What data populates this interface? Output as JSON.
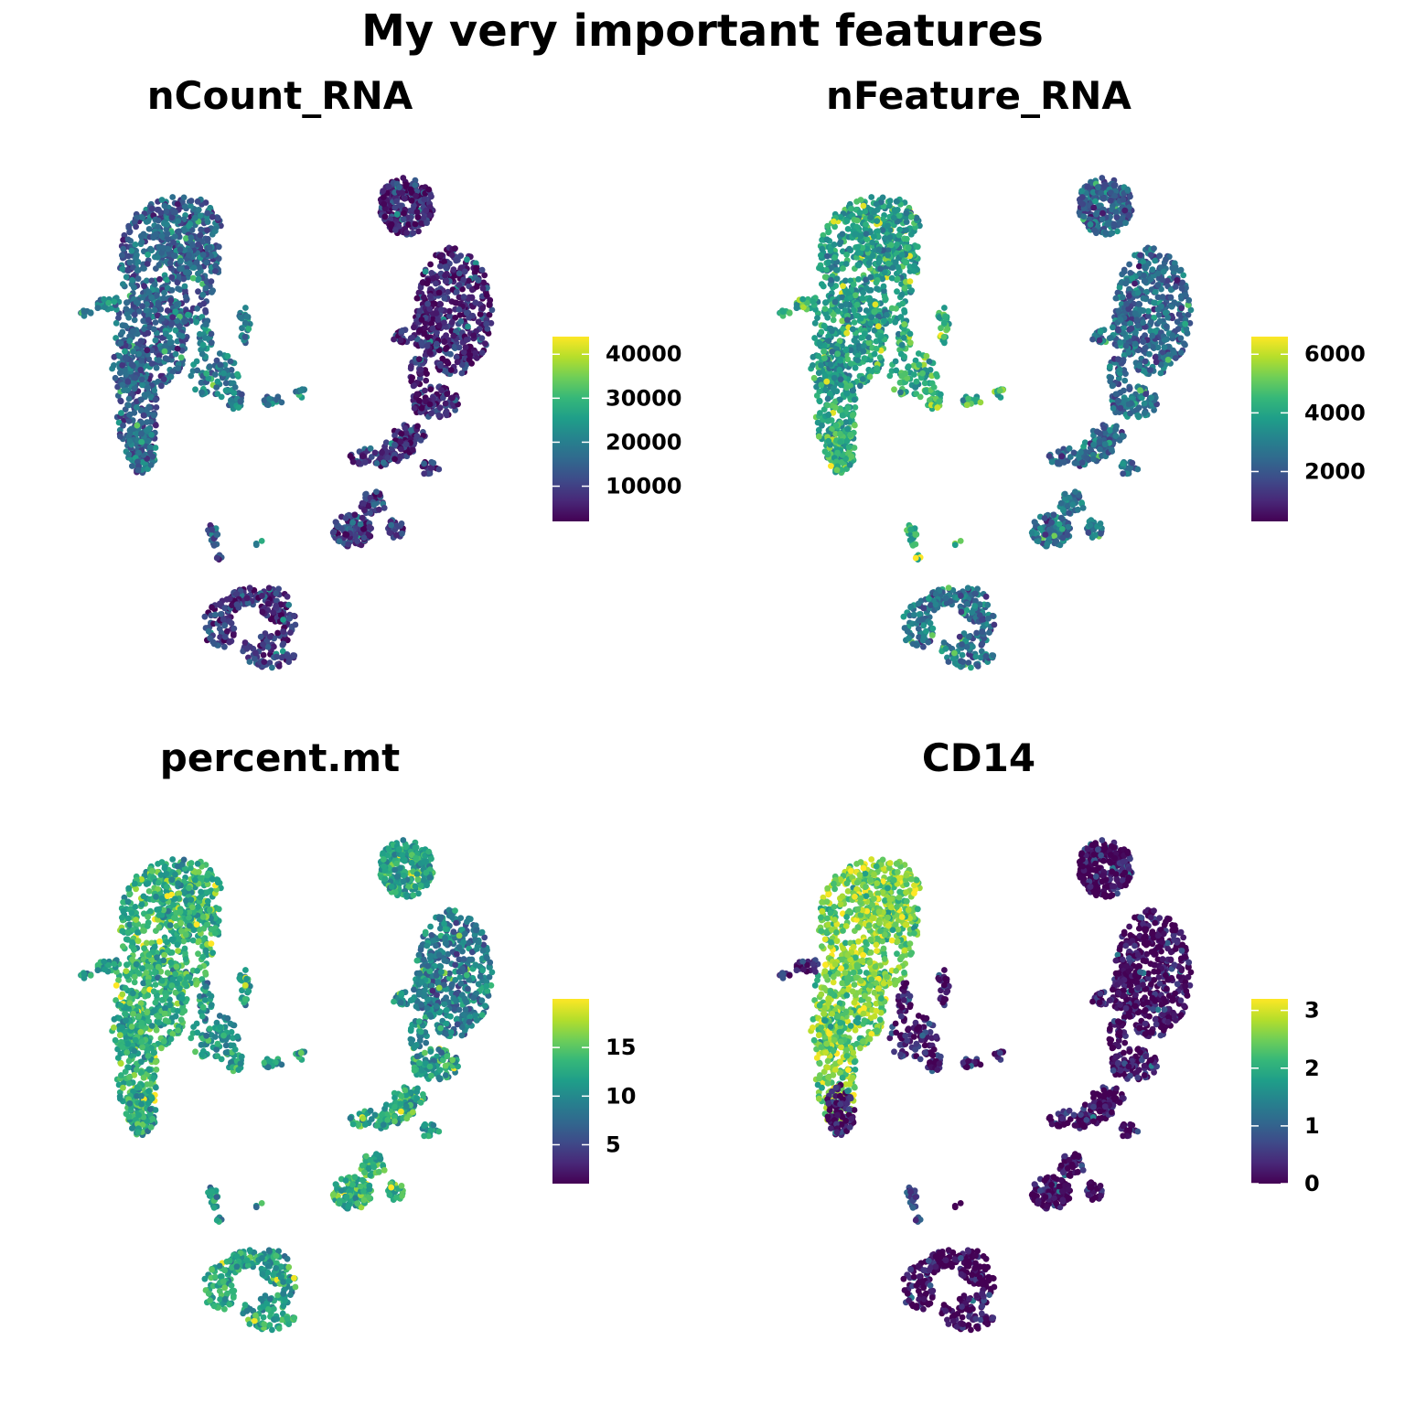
{
  "title": "My very important features",
  "colors": {
    "viridis": [
      "#440154",
      "#482878",
      "#3e4a89",
      "#31688e",
      "#26828e",
      "#1f9e89",
      "#35b779",
      "#6ece58",
      "#b5de2b",
      "#fde725"
    ]
  },
  "chart_data": [
    {
      "type": "scatter",
      "title": "nCount_RNA",
      "colorbar": {
        "min": 2000,
        "max": 44000,
        "ticks": [
          10000,
          20000,
          30000,
          40000
        ],
        "tick_labels": [
          "10000",
          "20000",
          "30000",
          "40000"
        ]
      },
      "cluster_means": {
        "main": 15000,
        "tail": 17000,
        "arm": 20000,
        "satellite": 25000,
        "top": 7000,
        "right": 6500,
        "stream": 8000,
        "bottom": 9000,
        "ring": 8000,
        "strip": 14000
      }
    },
    {
      "type": "scatter",
      "title": "nFeature_RNA",
      "colorbar": {
        "min": 300,
        "max": 6600,
        "ticks": [
          2000,
          4000,
          6000
        ],
        "tick_labels": [
          "2000",
          "4000",
          "6000"
        ]
      },
      "cluster_means": {
        "main": 3800,
        "tail": 4400,
        "arm": 4200,
        "satellite": 5000,
        "top": 2200,
        "right": 2400,
        "stream": 2500,
        "bottom": 2700,
        "ring": 2600,
        "strip": 4400
      }
    },
    {
      "type": "scatter",
      "title": "percent.mt",
      "colorbar": {
        "min": 1,
        "max": 20,
        "ticks": [
          5,
          10,
          15
        ],
        "tick_labels": [
          "5",
          "10",
          "15"
        ]
      },
      "cluster_means": {
        "main": 13,
        "tail": 12,
        "arm": 11,
        "satellite": 12,
        "top": 12,
        "right": 9,
        "stream": 12,
        "bottom": 13,
        "ring": 12,
        "strip": 11
      }
    },
    {
      "type": "scatter",
      "title": "CD14",
      "colorbar": {
        "min": 0,
        "max": 3.2,
        "ticks": [
          0,
          1,
          2,
          3
        ],
        "tick_labels": [
          "0",
          "1",
          "2",
          "3"
        ]
      },
      "cluster_means": {
        "main": 2.5,
        "tail": 0.2,
        "arm": 0.3,
        "satellite": 0.05,
        "top": 0,
        "right": 0.05,
        "stream": 0.15,
        "bottom": 0.05,
        "ring": 0.05,
        "strip": 0.6
      }
    }
  ]
}
